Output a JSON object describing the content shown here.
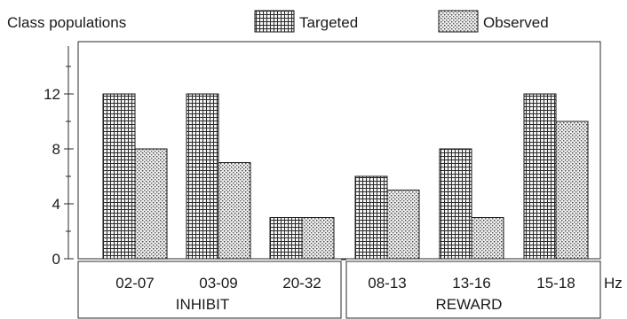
{
  "chart_data": {
    "type": "bar",
    "ylabel": "Class populations",
    "xunit": "Hz",
    "ylim": [
      0,
      14
    ],
    "yticks": [
      0,
      4,
      8,
      12
    ],
    "yminor": [
      2,
      6,
      10,
      14
    ],
    "legend_position": "top",
    "categories": [
      "02-07",
      "03-09",
      "20-32",
      "08-13",
      "13-16",
      "15-18"
    ],
    "groups": [
      {
        "label": "INHIBIT",
        "categories": [
          "02-07",
          "03-09",
          "20-32"
        ]
      },
      {
        "label": "REWARD",
        "categories": [
          "08-13",
          "13-16",
          "15-18"
        ]
      }
    ],
    "series": [
      {
        "name": "Targeted",
        "pattern": "grid",
        "values": [
          12,
          12,
          3,
          6,
          8,
          12
        ]
      },
      {
        "name": "Observed",
        "pattern": "dots",
        "values": [
          8,
          7,
          3,
          5,
          3,
          10
        ]
      }
    ]
  }
}
